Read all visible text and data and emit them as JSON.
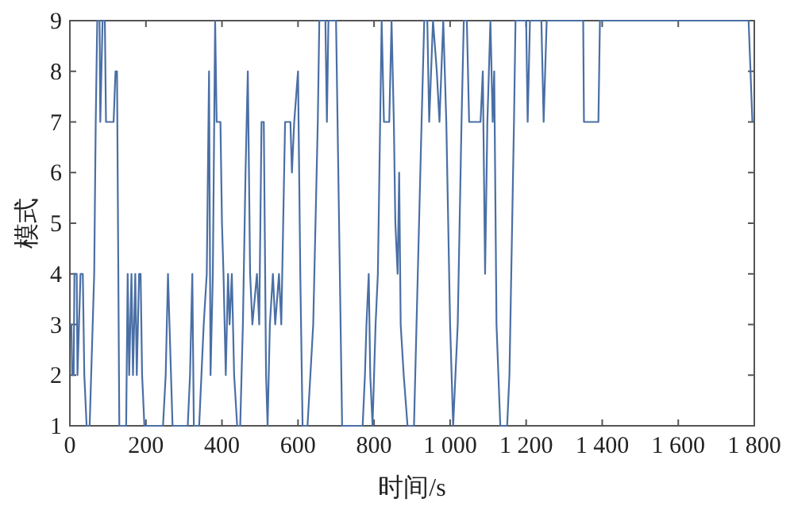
{
  "chart_data": {
    "type": "line",
    "xlabel": "时间/s",
    "ylabel": "模式",
    "xlim": [
      0,
      1800
    ],
    "ylim": [
      1,
      9
    ],
    "xticks": [
      0,
      200,
      400,
      600,
      800,
      {
        "value": 1000,
        "label": "1 000"
      },
      {
        "value": 1200,
        "label": "1 200"
      },
      {
        "value": 1400,
        "label": "1 400"
      },
      {
        "value": 1600,
        "label": "1 600"
      },
      {
        "value": 1800,
        "label": "1 800"
      }
    ],
    "yticks": [
      1,
      2,
      3,
      4,
      5,
      6,
      7,
      8,
      9
    ],
    "grid": false,
    "marker": "none",
    "line_style": "solid",
    "series": [
      {
        "color": "#4a6fa5",
        "x": [
          0,
          4,
          6,
          10,
          12,
          18,
          20,
          24,
          28,
          34,
          38,
          44,
          52,
          56,
          60,
          64,
          68,
          72,
          78,
          80,
          86,
          92,
          95,
          115,
          120,
          124,
          130,
          148,
          152,
          156,
          162,
          166,
          172,
          176,
          182,
          186,
          190,
          196,
          245,
          252,
          258,
          262,
          270,
          310,
          316,
          322,
          326,
          340,
          346,
          352,
          360,
          366,
          370,
          376,
          382,
          386,
          396,
          400,
          404,
          410,
          416,
          420,
          426,
          432,
          440,
          448,
          455,
          462,
          468,
          474,
          480,
          492,
          498,
          504,
          510,
          516,
          520,
          526,
          534,
          540,
          550,
          556,
          566,
          580,
          584,
          590,
          600,
          606,
          612,
          625,
          640,
          652,
          656,
          672,
          676,
          680,
          700,
          716,
          770,
          776,
          780,
          786,
          790,
          796,
          804,
          810,
          816,
          820,
          826,
          840,
          846,
          852,
          856,
          862,
          866,
          870,
          878,
          888,
          905,
          915,
          925,
          932,
          940,
          945,
          955,
          965,
          972,
          982,
          990,
          1000,
          1008,
          1014,
          1020,
          1030,
          1036,
          1044,
          1050,
          1080,
          1086,
          1092,
          1098,
          1106,
          1112,
          1116,
          1122,
          1132,
          1150,
          1156,
          1168,
          1172,
          1200,
          1204,
          1210,
          1240,
          1246,
          1254,
          1350,
          1352,
          1390,
          1394,
          1785,
          1795
        ],
        "values": [
          3,
          3,
          2,
          2,
          4,
          4,
          2,
          3,
          4,
          4,
          2,
          1,
          1,
          2,
          3,
          4,
          7,
          9,
          9,
          7,
          9,
          9,
          7,
          7,
          8,
          8,
          1,
          1,
          4,
          2,
          4,
          2,
          4,
          2,
          4,
          4,
          2,
          1,
          1,
          2,
          4,
          3,
          1,
          1,
          2,
          4,
          1,
          1,
          2,
          3,
          4,
          8,
          2,
          4,
          9,
          7,
          7,
          5,
          4,
          2,
          4,
          3,
          4,
          2,
          1,
          1,
          3,
          6,
          8,
          4,
          3,
          4,
          3,
          7,
          7,
          2,
          1,
          3,
          4,
          3,
          4,
          3,
          7,
          7,
          6,
          7,
          8,
          4,
          1,
          1,
          3,
          7,
          9,
          9,
          7,
          9,
          9,
          1,
          1,
          2,
          3,
          4,
          2,
          1,
          3,
          4,
          7,
          9,
          7,
          7,
          9,
          7,
          5,
          4,
          6,
          3,
          2,
          1,
          1,
          4,
          7,
          9,
          9,
          7,
          9,
          8,
          7,
          9,
          7,
          3,
          1,
          2,
          3,
          7,
          9,
          9,
          7,
          7,
          8,
          4,
          7,
          9,
          7,
          8,
          3,
          1,
          1,
          2,
          7,
          9,
          9,
          7,
          9,
          9,
          7,
          9,
          9,
          7,
          7,
          9,
          9,
          7
        ]
      }
    ]
  }
}
